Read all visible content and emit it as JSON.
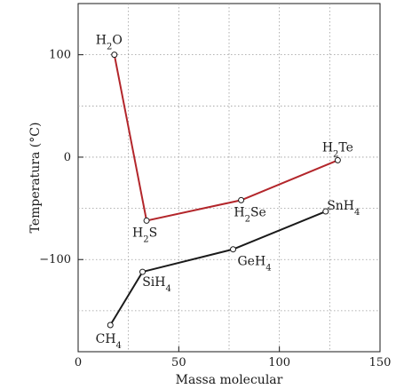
{
  "chart_data": {
    "type": "line",
    "xlabel": "Massa molecular",
    "ylabel": "Temperatura (°C)",
    "xlim": [
      0,
      150
    ],
    "ylim": [
      -190,
      150
    ],
    "xticks": [
      0,
      50,
      100,
      150
    ],
    "yticks": [
      100,
      0,
      -100
    ],
    "grid": true,
    "series": [
      {
        "color": "#b3262b",
        "points": [
          {
            "label": "H2O",
            "x": 18,
            "y": 100
          },
          {
            "label": "H2S",
            "x": 34,
            "y": -62
          },
          {
            "label": "H2Se",
            "x": 81,
            "y": -42
          },
          {
            "label": "H2Te",
            "x": 129,
            "y": -3
          }
        ]
      },
      {
        "color": "#1a1a1a",
        "points": [
          {
            "label": "CH4",
            "x": 16,
            "y": -164
          },
          {
            "label": "SiH4",
            "x": 32,
            "y": -112
          },
          {
            "label": "GeH4",
            "x": 77,
            "y": -90
          },
          {
            "label": "SnH4",
            "x": 123,
            "y": -53
          }
        ]
      }
    ]
  }
}
